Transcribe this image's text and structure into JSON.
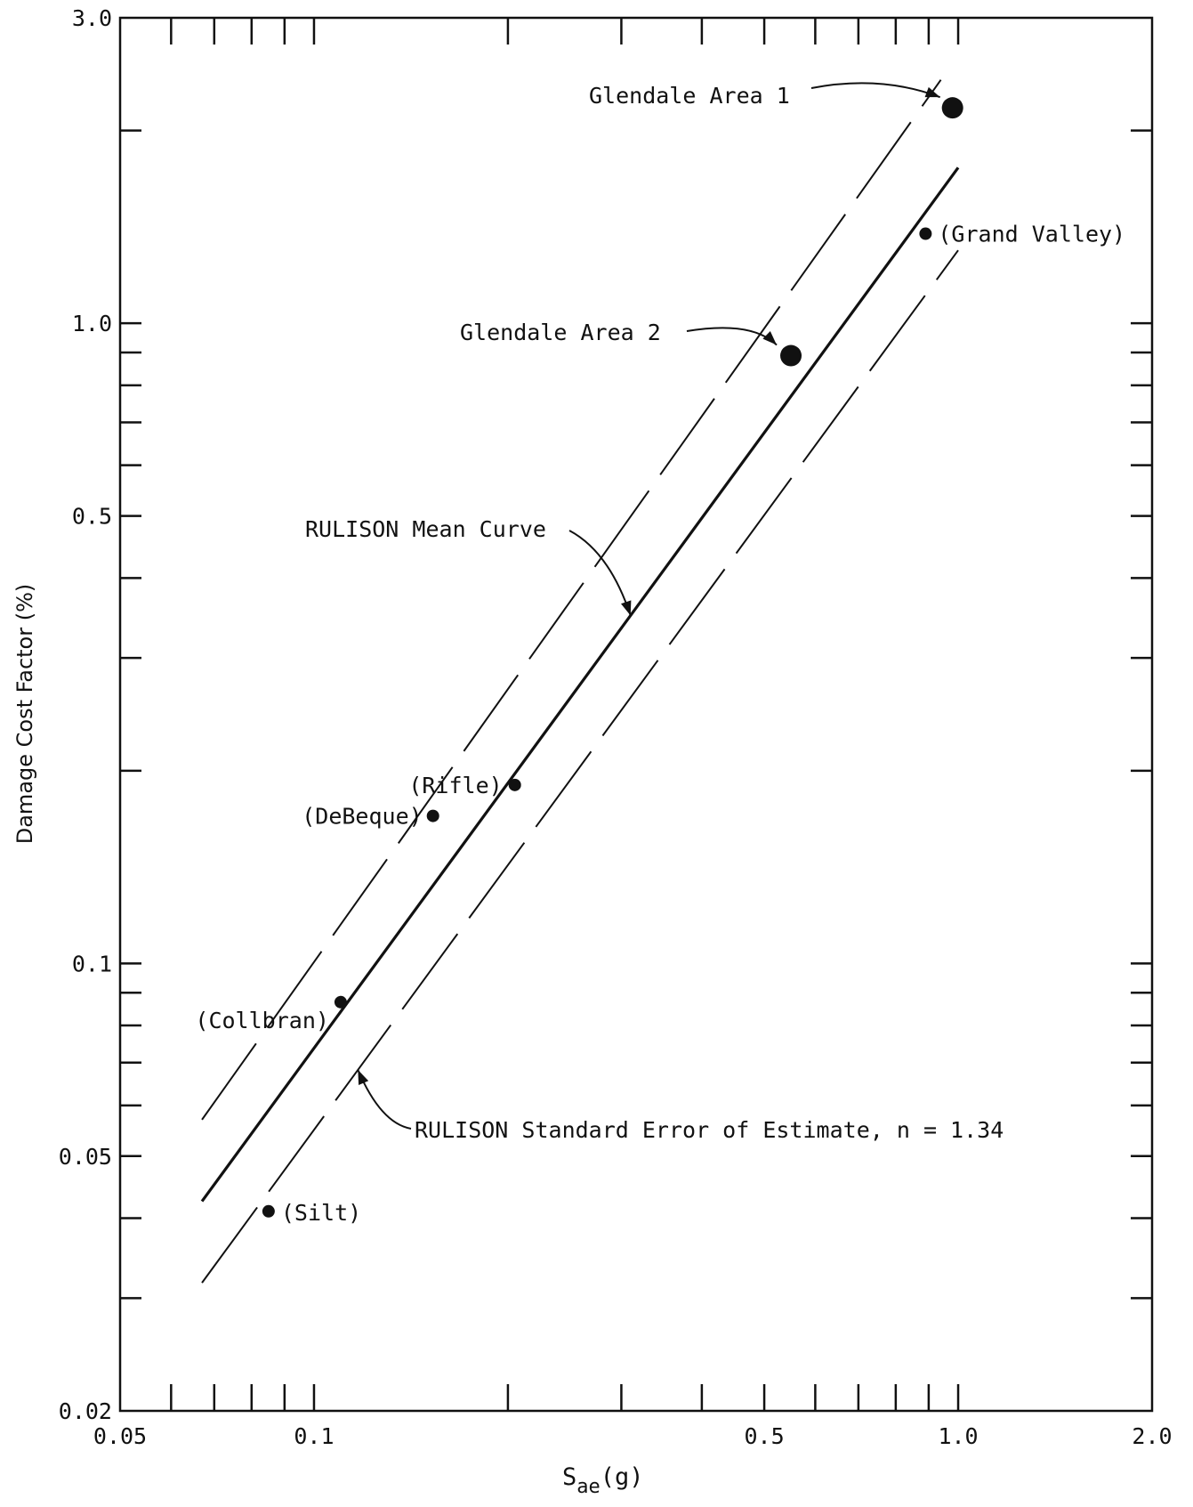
{
  "chart_data": {
    "type": "scatter",
    "title": "",
    "xlabel": "S",
    "xlabel_sub": "ae",
    "xlabel_unit": "(g)",
    "ylabel": "Damage Cost Factor (%)",
    "x_scale": "log",
    "y_scale": "log",
    "xlim": [
      0.05,
      2.0
    ],
    "ylim": [
      0.02,
      3.0
    ],
    "x_ticks_labeled": [
      "0.05",
      "0.1",
      "0.5",
      "1.0",
      "2.0"
    ],
    "y_ticks_labeled": [
      "0.02",
      "0.05",
      "0.1",
      "0.5",
      "1.0",
      "3.0"
    ],
    "x_tick_values": [
      0.05,
      0.06,
      0.07,
      0.08,
      0.09,
      0.1,
      0.2,
      0.3,
      0.4,
      0.5,
      0.6,
      0.7,
      0.8,
      0.9,
      1.0,
      2.0
    ],
    "y_tick_values": [
      0.02,
      0.03,
      0.04,
      0.05,
      0.06,
      0.07,
      0.08,
      0.09,
      0.1,
      0.2,
      0.3,
      0.4,
      0.5,
      0.6,
      0.7,
      0.8,
      0.9,
      1.0,
      2.0,
      3.0
    ],
    "grid": false,
    "points": [
      {
        "label": "Glendale Area 1",
        "x": 0.98,
        "y": 2.17,
        "size": "large"
      },
      {
        "label": "(Grand Valley)",
        "x": 0.89,
        "y": 1.38,
        "size": "small"
      },
      {
        "label": "Glendale Area 2",
        "x": 0.55,
        "y": 0.89,
        "size": "large"
      },
      {
        "label": "(Rifle)",
        "x": 0.205,
        "y": 0.19,
        "size": "small"
      },
      {
        "label": "(DeBeque)",
        "x": 0.153,
        "y": 0.17,
        "size": "small"
      },
      {
        "label": "(Collbran)",
        "x": 0.11,
        "y": 0.087,
        "size": "small"
      },
      {
        "label": "(Silt)",
        "x": 0.085,
        "y": 0.041,
        "size": "small"
      }
    ],
    "lines": [
      {
        "name": "RULISON Mean Curve",
        "style": "solid",
        "x": [
          0.067,
          1.0
        ],
        "y": [
          0.0425,
          1.75
        ]
      },
      {
        "name": "RULISON Standard Error of Estimate, n = 1.34",
        "style": "dashed",
        "x": [
          0.067,
          0.94
        ],
        "y": [
          0.057,
          2.4
        ]
      },
      {
        "name": "RULISON Standard Error of Estimate, n = 1.34",
        "style": "dashed",
        "x": [
          0.067,
          1.0
        ],
        "y": [
          0.0317,
          1.3
        ]
      }
    ],
    "annotations": [
      {
        "text": "Glendale Area 1",
        "points_to": "Glendale Area 1"
      },
      {
        "text": "Glendale Area 2",
        "points_to": "Glendale Area 2"
      },
      {
        "text": "RULISON Mean Curve",
        "points_to": "RULISON Mean Curve"
      },
      {
        "text": "RULISON Standard Error of Estimate, n = 1.34",
        "points_to": "RULISON Standard Error of Estimate"
      }
    ]
  }
}
